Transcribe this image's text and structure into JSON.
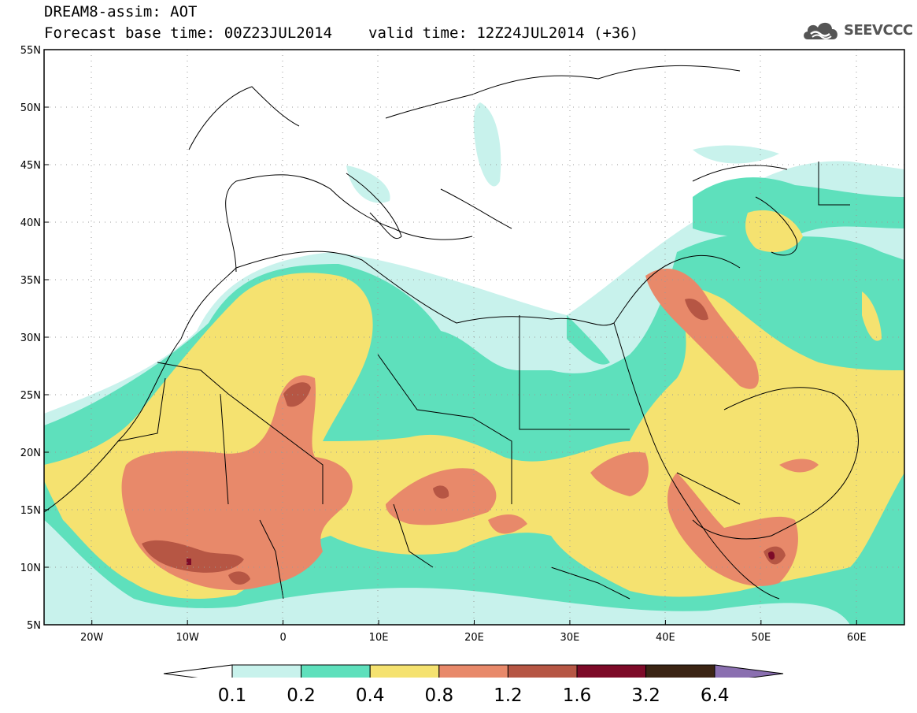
{
  "header": {
    "line1": "DREAM8-assim: AOT",
    "base_time": "Forecast base time: 00Z23JUL2014",
    "valid_time": "valid time: 12Z24JUL2014 (+36)"
  },
  "logo": {
    "text": "SEEVCCC",
    "icon": "cloud-logo-icon"
  },
  "map": {
    "lon_range": [
      -25,
      65
    ],
    "lat_range": [
      5,
      55
    ],
    "lat_ticks": [
      "55N",
      "50N",
      "45N",
      "40N",
      "35N",
      "30N",
      "25N",
      "20N",
      "15N",
      "10N",
      "5N"
    ],
    "lon_ticks": [
      "20W",
      "10W",
      "0",
      "10E",
      "20E",
      "30E",
      "40E",
      "50E",
      "60E"
    ]
  },
  "colorbar": {
    "labels": [
      "0.1",
      "0.2",
      "0.4",
      "0.8",
      "1.2",
      "1.6",
      "3.2",
      "6.4"
    ],
    "colors": [
      "#c8f2ec",
      "#5ee0bc",
      "#f5e270",
      "#e8896a",
      "#b65644",
      "#7d0a28",
      "#3b2414",
      "#8a6fb0"
    ]
  }
}
